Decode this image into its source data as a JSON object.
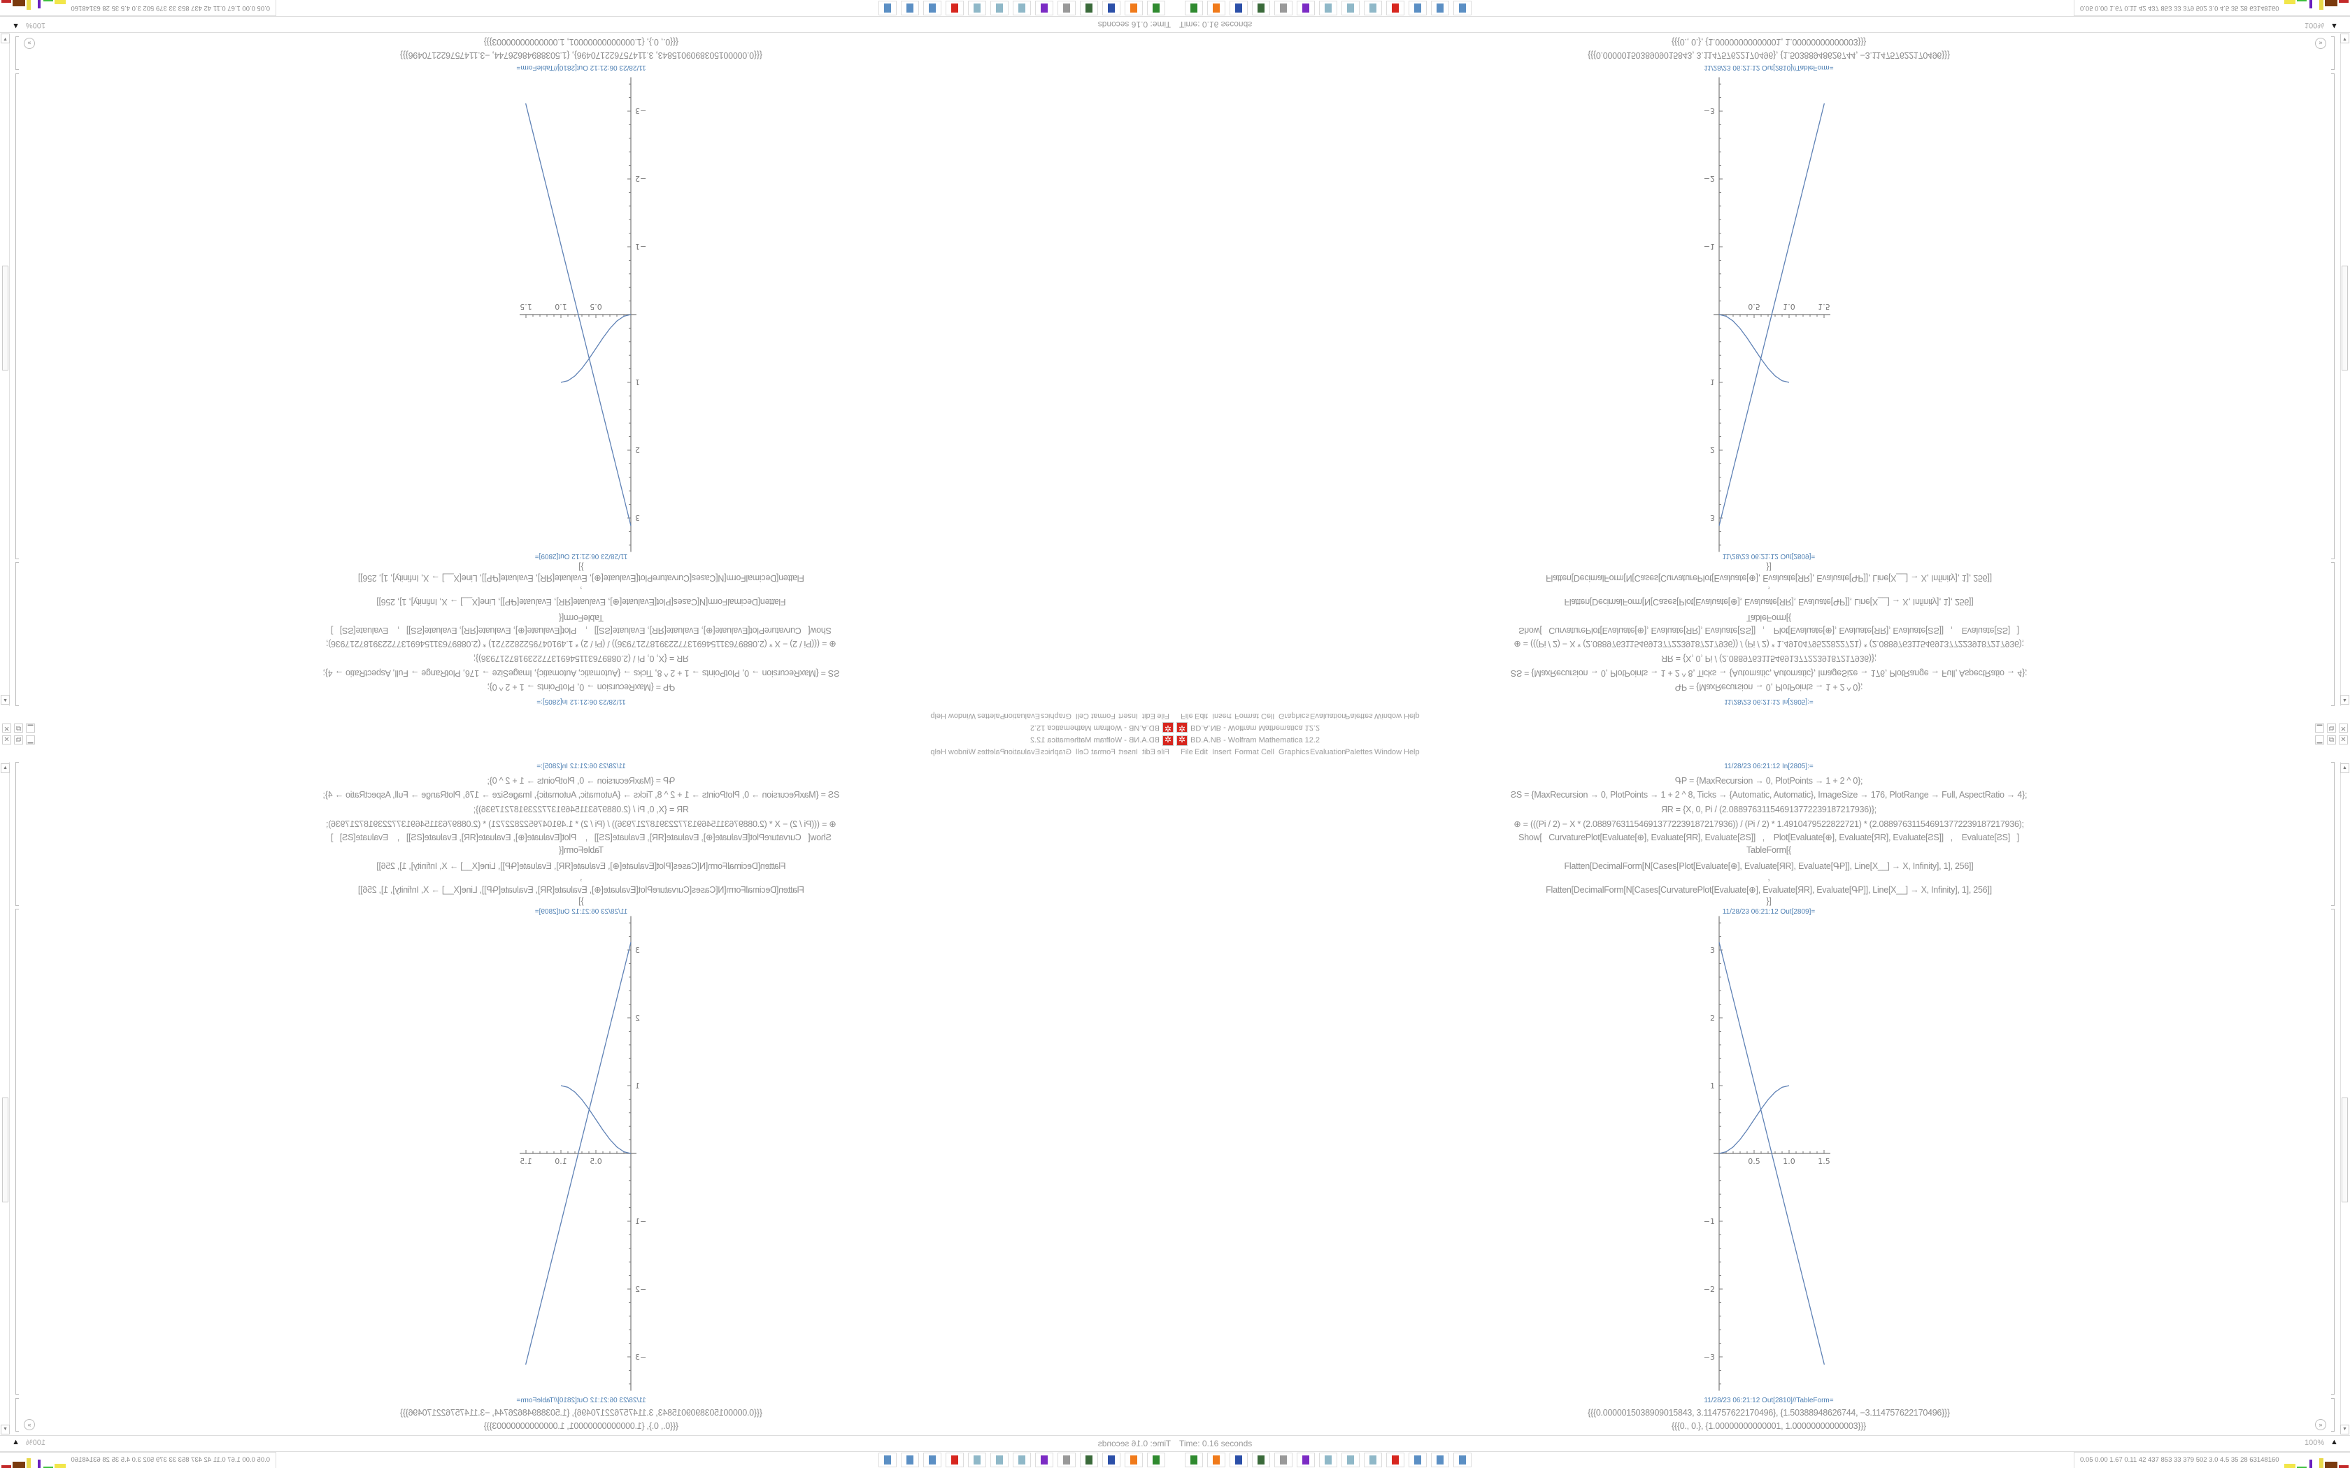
{
  "window": {
    "title": "BD.A.NB - Wolfram Mathematica 12.2",
    "controls": {
      "minimize": "▁",
      "restore": "⧉",
      "close": "✕"
    }
  },
  "menu": [
    "File",
    "Edit",
    "Insert",
    "Format",
    "Cell",
    "Graphics",
    "Evaluation",
    "Palettes",
    "Window",
    "Help"
  ],
  "input_cell": {
    "label": "11/28/23 06:21:12 In[2805]:=",
    "lines": [
      "ԳP = {MaxRecursion → 0, PlotPoints → 1 + 2 ^ 0};",
      "ƧS = {MaxRecursion → 0, PlotPoints → 1 + 2 ^ 8, Ticks → {Automatic, Automatic}, ImageSize → 176, PlotRange → Full, AspectRatio → 4};",
      "ЯR = {X, 0, Pi / (2.088976311546913772239187217936)};",
      "⊕ = (((Pi / 2) − X * (2.088976311546913772239187217936)) / (Pi / 2) * 1.4910479522822721) * (2.088976311546913772239187217936);",
      "Show[   CurvaturePlot[Evaluate[⊕], Evaluate[ЯR], Evaluate[ƧS]]   ,    Plot[Evaluate[⊕], Evaluate[ЯR], Evaluate[ƧS]]   ,    Evaluate[ƧS]   ]",
      "TableForm[{",
      "Flatten[DecimalForm[N[Cases[Plot[Evaluate[⊕], Evaluate[ЯR], Evaluate[ԳP]], Line[X__] → X, Infinity], 1], 256]]",
      ",",
      "Flatten[DecimalForm[N[Cases[CurvaturePlot[Evaluate[⊕], Evaluate[ЯR], Evaluate[ԳP]], Line[X__] → X, Infinity], 1], 256]]",
      "}]"
    ]
  },
  "plot_cell": {
    "label": "11/28/23 06:21:12 Out[2809]=",
    "chart_data": {
      "type": "line",
      "xlim": [
        0,
        1.5
      ],
      "ylim": [
        -3.5,
        3.5
      ],
      "x_ticks": [
        "0.5",
        "1.0",
        "1.5"
      ],
      "x_tick_values": [
        0.5,
        1.0,
        1.5
      ],
      "y_ticks": [
        "3",
        "2",
        "1",
        "−1",
        "−2",
        "−3"
      ],
      "y_tick_values": [
        3,
        2,
        1,
        -1,
        -2,
        -3
      ],
      "line_color": "#5e81b5",
      "series": [
        {
          "points": [
            [
              1.5038909015843e-06,
              3.114757622170496
            ],
            [
              1.50388948626744,
              -3.114757622170496
            ]
          ]
        },
        {
          "points": [
            [
              0,
              0
            ],
            [
              0.1,
              0.0245
            ],
            [
              0.2,
              0.0955
            ],
            [
              0.3,
              0.2061
            ],
            [
              0.4,
              0.3455
            ],
            [
              0.5,
              0.5
            ],
            [
              0.6,
              0.6545
            ],
            [
              0.7,
              0.7939
            ],
            [
              0.8,
              0.9045
            ],
            [
              0.9,
              0.9755
            ],
            [
              1.0,
              1.0
            ]
          ]
        }
      ]
    }
  },
  "table_cell": {
    "label": "11/28/23 06:21:12 Out[2810]//TableForm=",
    "rows": [
      "{{{0.0000015038909015843, 3.114757622170496}, {1.50388948626744, −3.114757622170496}}}",
      "{{{0., 0.}, {1.00000000000001, 1.00000000000003}}}"
    ]
  },
  "status": {
    "time": "Time: 0.16 seconds",
    "zoom": "100%"
  },
  "taskbar": {
    "icons": [
      {
        "name": "terminal-icon",
        "color": "#2f8a2f"
      },
      {
        "name": "firefox-icon",
        "color": "#f07a1a"
      },
      {
        "name": "floppy-icon",
        "color": "#2b4fa8"
      },
      {
        "name": "monitor-icon",
        "color": "#3a6a3a"
      },
      {
        "name": "speaker-icon",
        "color": "#999999"
      },
      {
        "name": "ghost-icon",
        "color": "#7b2bc4"
      },
      {
        "name": "notepad-icon",
        "color": "#8fb8c8"
      },
      {
        "name": "notepad-icon",
        "color": "#8fb8c8"
      },
      {
        "name": "notepad-icon",
        "color": "#8fb8c8"
      },
      {
        "name": "gear-icon",
        "color": "#d7261e"
      },
      {
        "name": "calculator-icon",
        "color": "#5b8fc4"
      },
      {
        "name": "calculator-icon",
        "color": "#5b8fc4"
      },
      {
        "name": "calculator-icon",
        "color": "#5b8fc4"
      }
    ],
    "tray_text": "0.05 0.00 1.67 0.11  42  437  853  33  379  502  3.0  4.5  35  28  63148160"
  }
}
